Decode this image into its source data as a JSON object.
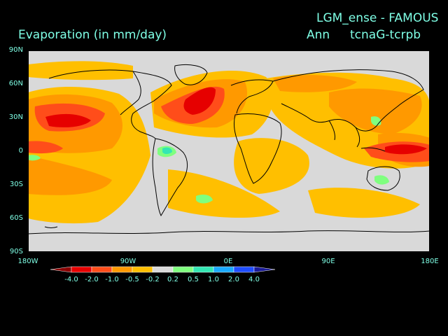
{
  "header": {
    "run_title": "LGM_ense - FAMOUS",
    "plot_title": "Evaporation (in mm/day)",
    "season": "Ann",
    "experiment": "tcnaG-tcrpb"
  },
  "axes": {
    "lat_labels": [
      "90N",
      "60N",
      "30N",
      "0",
      "30S",
      "60S",
      "90S"
    ],
    "lon_labels": [
      "180W",
      "90W",
      "0E",
      "90E",
      "180E"
    ]
  },
  "colorbar": {
    "labels": [
      "-4.0",
      "-2.0",
      "-1.0",
      "-0.5",
      "-0.2",
      "0.2",
      "0.5",
      "1.0",
      "2.0",
      "4.0"
    ],
    "colors": [
      "#8b0000",
      "#e60000",
      "#ff4d1a",
      "#ff9900",
      "#ffbf00",
      "#d9d9d9",
      "#7fff7f",
      "#33e6b3",
      "#1aaaff",
      "#1f4dff",
      "#1a1a99"
    ]
  },
  "map": {
    "background": "#d9d9d9",
    "colors": {
      "deep_red": "#e60000",
      "red_orange": "#ff4d1a",
      "orange": "#ff9900",
      "light_orange": "#ffbf00",
      "green": "#7fff7f",
      "teal": "#33e6b3"
    }
  }
}
